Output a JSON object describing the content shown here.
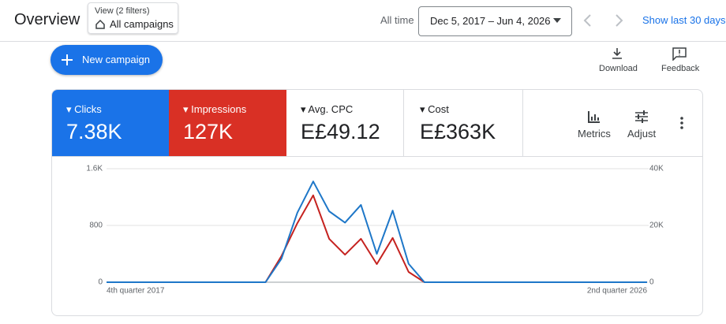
{
  "header": {
    "title": "Overview",
    "filter_caption": "View (2 filters)",
    "filter_value": "All campaigns",
    "range_label": "All time",
    "date_range": "Dec 5, 2017 – Jun 4, 2026",
    "show_last": "Show last 30 days"
  },
  "toolbar": {
    "new_campaign": "New campaign",
    "download": "Download",
    "feedback": "Feedback"
  },
  "metrics": [
    {
      "value": "7.38K"
    },
    {
      "value": "127K"
    },
    {
      "label": "Avg. CPC",
      "value": "E£49.12"
    },
    {
      "label": "Cost",
      "value": "E£363K"
    }
  ],
  "metric_tools": {
    "metrics": "Metrics",
    "adjust": "Adjust"
  },
  "chart_data": {
    "type": "line",
    "categories": [
      "4th quarter 2017",
      null,
      null,
      null,
      null,
      null,
      null,
      null,
      null,
      null,
      null,
      null,
      null,
      null,
      null,
      null,
      null,
      null,
      null,
      null,
      null,
      null,
      null,
      null,
      null,
      null,
      null,
      null,
      null,
      null,
      null,
      null,
      null,
      null,
      "2nd quarter 2026"
    ],
    "series": [
      {
        "name": "Clicks",
        "color": "#1e77c8",
        "values": [
          0,
          0,
          0,
          0,
          0,
          0,
          0,
          0,
          0,
          0,
          0,
          330,
          980,
          1420,
          1000,
          840,
          1090,
          400,
          1010,
          260,
          0,
          0,
          0,
          0,
          0,
          0,
          0,
          0,
          0,
          0,
          0,
          0,
          0,
          0,
          0
        ]
      },
      {
        "name": "Impressions",
        "color": "#c5221f",
        "axis": "y2",
        "values": [
          0,
          0,
          0,
          0,
          0,
          0,
          0,
          0,
          0,
          0,
          0,
          9200,
          20800,
          30600,
          15300,
          9700,
          15300,
          6400,
          15600,
          3600,
          0,
          0,
          0,
          0,
          0,
          0,
          0,
          0,
          0,
          0,
          0,
          0,
          0,
          0,
          0
        ]
      }
    ],
    "ylim": [
      0,
      1600
    ],
    "yticks": [
      0,
      800,
      {
        "value": 1600,
        "label": "1.6K"
      }
    ],
    "y2lim": [
      0,
      40000
    ],
    "y2ticks": [
      0,
      {
        "value": 20000,
        "label": "20K"
      },
      {
        "value": 40000,
        "label": "40K"
      }
    ],
    "grid": true
  }
}
